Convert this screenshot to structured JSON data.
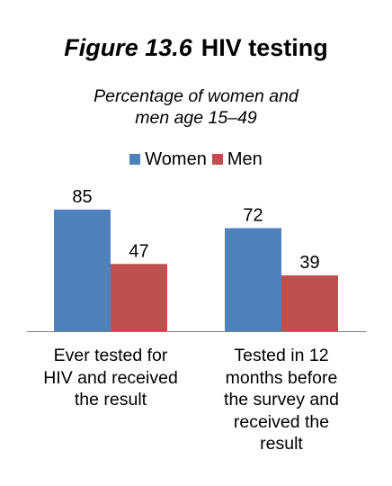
{
  "chart_data": {
    "type": "bar",
    "title": {
      "figure_label": "Figure 13.6",
      "text": "HIV testing"
    },
    "subtitle_lines": [
      "Percentage of women and",
      "men age 15–49"
    ],
    "categories": [
      [
        "Ever tested for",
        "HIV and received",
        "the result"
      ],
      [
        "Tested in 12",
        "months before",
        "the survey and",
        "received the",
        "result"
      ]
    ],
    "series": [
      {
        "name": "Women",
        "color": "#4F81BD",
        "values": [
          85,
          72
        ]
      },
      {
        "name": "Men",
        "color": "#C0504D",
        "values": [
          47,
          39
        ]
      }
    ],
    "legend_position": "top",
    "grid": false,
    "ylim": [
      0,
      100
    ]
  }
}
